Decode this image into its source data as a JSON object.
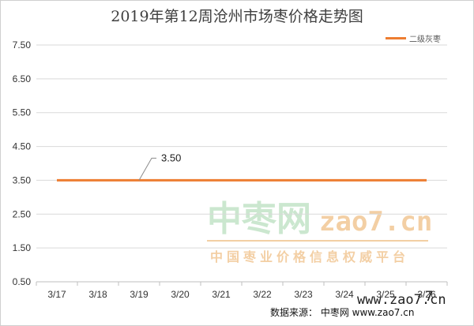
{
  "chart_data": {
    "type": "line",
    "title": "2019年第12周沧州市场枣价格走势图",
    "categories": [
      "3/17",
      "3/18",
      "3/19",
      "3/20",
      "3/21",
      "3/22",
      "3/23",
      "3/24",
      "3/25",
      "3/26"
    ],
    "series": [
      {
        "name": "二级灰枣",
        "values": [
          3.5,
          3.5,
          3.5,
          3.5,
          3.5,
          3.5,
          3.5,
          3.5,
          3.5,
          3.5
        ],
        "color": "#ED7D31"
      }
    ],
    "yticks": [
      "0.50",
      "1.50",
      "2.50",
      "3.50",
      "4.50",
      "5.50",
      "6.50",
      "7.50"
    ],
    "ylim": [
      0.5,
      7.5
    ],
    "grid": true,
    "legend_position": "top-right",
    "data_label": "3.50"
  },
  "watermark": {
    "brand": "中枣网",
    "url": "zao7.cn",
    "subtitle": "中国枣业价格信息权威平台",
    "small_url": "www.zao7.cn",
    "corner_mark": "7"
  },
  "source_note": "数据来源：  中枣网 www.zao7.cn"
}
